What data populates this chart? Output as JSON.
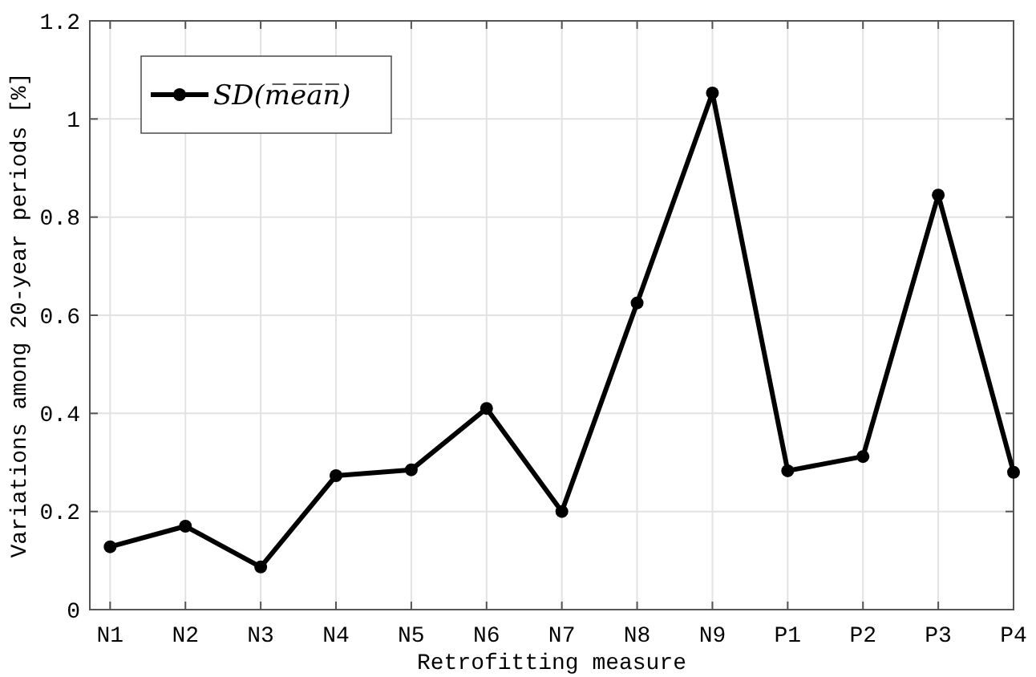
{
  "chart_data": {
    "type": "line",
    "xlabel": "Retrofitting measure",
    "ylabel": "Variations among 20-year periods [%]",
    "categories": [
      "N1",
      "N2",
      "N3",
      "N4",
      "N5",
      "N6",
      "N7",
      "N8",
      "N9",
      "P1",
      "P2",
      "P3",
      "P4"
    ],
    "series": [
      {
        "name": "SD(m̅e̅a̅n̅)",
        "color": "#000000",
        "values": [
          0.128,
          0.17,
          0.087,
          0.273,
          0.285,
          0.41,
          0.2,
          0.625,
          1.053,
          0.283,
          0.312,
          0.845,
          0.28
        ]
      }
    ],
    "ylim": [
      0,
      1.2
    ],
    "yticks": [
      0,
      0.2,
      0.4,
      0.6,
      0.8,
      1,
      1.2
    ],
    "grid": true,
    "legend": "top left",
    "marker": "circle",
    "line_style": "solid"
  }
}
